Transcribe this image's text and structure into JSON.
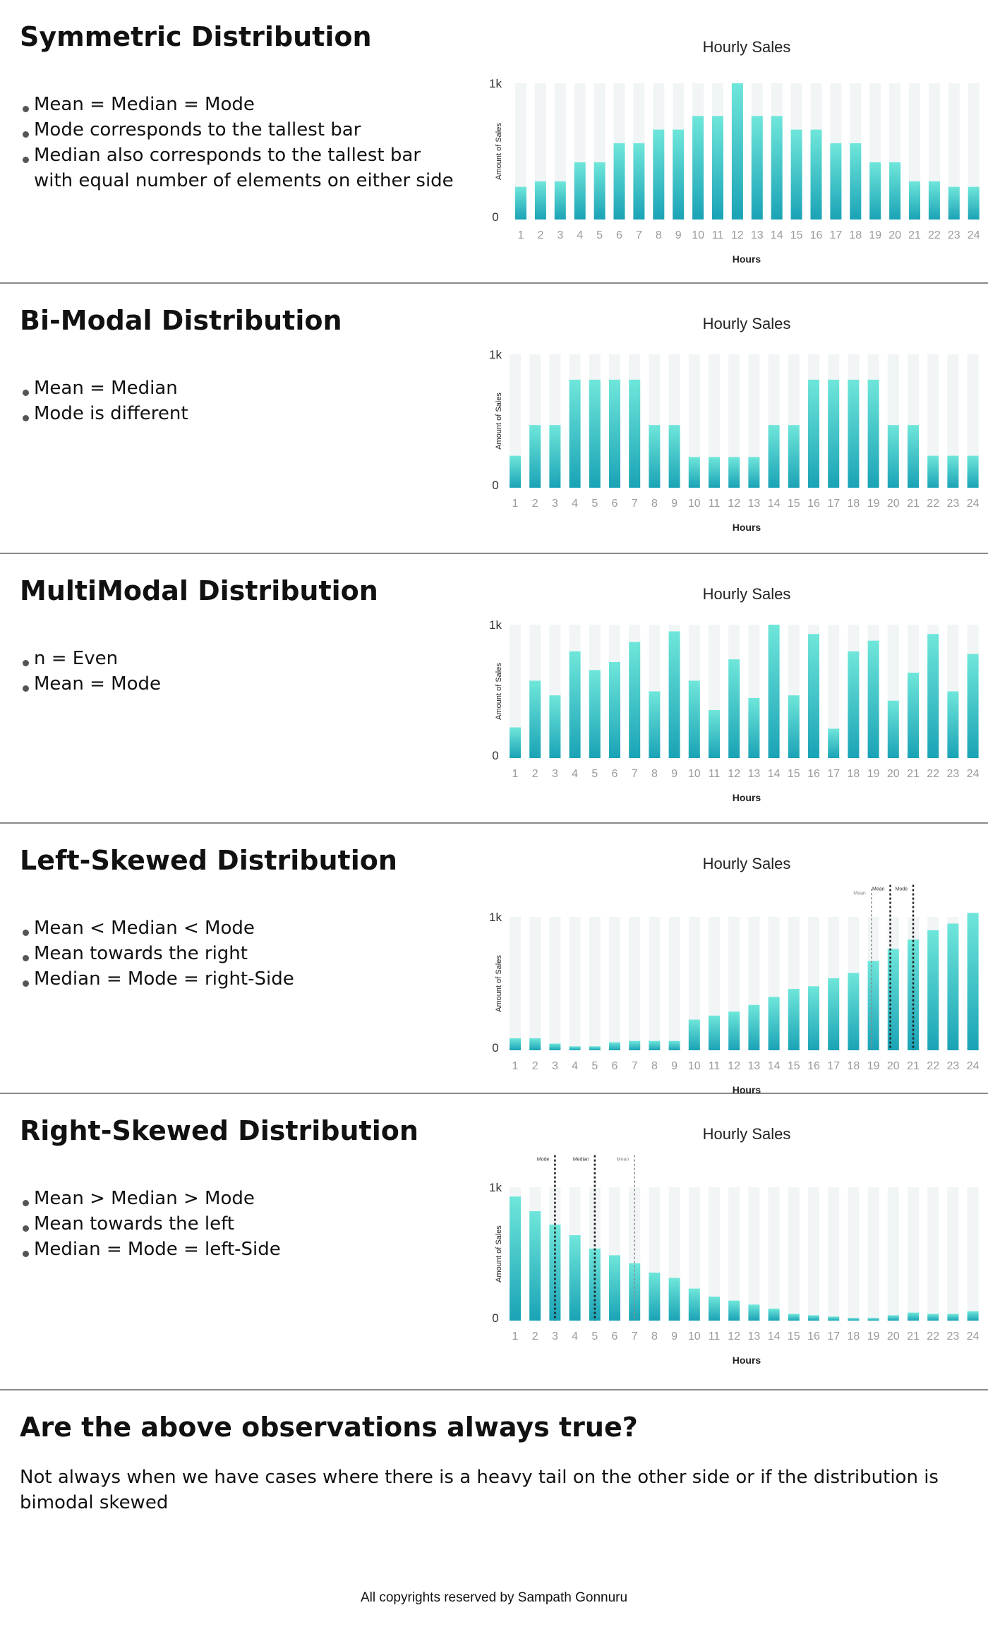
{
  "sections": [
    {
      "title": "Symmetric Distribution",
      "bullets": [
        "Mean = Median = Mode",
        "Mode corresponds to the tallest bar",
        "Median also corresponds to the tallest bar with equal number of elements on either side"
      ]
    },
    {
      "title": "Bi-Modal Distribution",
      "bullets": [
        "Mean = Median",
        "Mode is different"
      ]
    },
    {
      "title": "MultiModal Distribution",
      "bullets": [
        "n = Even",
        "Mean = Mode"
      ]
    },
    {
      "title": "Left-Skewed Distribution",
      "bullets": [
        "Mean < Median < Mode",
        "Mean towards the right",
        "Median = Mode = right-Side"
      ]
    },
    {
      "title": "Right-Skewed Distribution",
      "bullets": [
        "Mean > Median > Mode",
        "Mean towards the left",
        "Median = Mode = left-Side"
      ]
    }
  ],
  "final": {
    "title": "Are the above observations always true?",
    "text": "Not always when we have cases where there is a heavy tail on the other side or if the distribution is bimodal skewed",
    "copyright": "All copyrights reserved by Sampath Gonnuru"
  },
  "colors": {
    "bar_top": "#6fe6da",
    "bar_bottom": "#1aa3b6",
    "bar_track": "#f1f5f6",
    "axis_text": "#9a9a9a",
    "marker_line": "#222222"
  },
  "chart_data": [
    {
      "type": "bar",
      "title": "Hourly Sales",
      "xlabel": "Hours",
      "ylabel": "Amount of Sales",
      "categories": [
        "1",
        "2",
        "3",
        "4",
        "5",
        "6",
        "7",
        "8",
        "9",
        "10",
        "11",
        "12",
        "13",
        "14",
        "15",
        "16",
        "17",
        "18",
        "19",
        "20",
        "21",
        "22",
        "23",
        "24"
      ],
      "values": [
        240,
        280,
        280,
        420,
        420,
        560,
        560,
        660,
        660,
        760,
        760,
        1000,
        760,
        760,
        660,
        660,
        560,
        560,
        420,
        420,
        280,
        280,
        240,
        240
      ],
      "ylim": [
        0,
        1000
      ],
      "yticks": [
        "0",
        "1k"
      ],
      "markers": []
    },
    {
      "type": "bar",
      "title": "Hourly Sales",
      "xlabel": "Hours",
      "ylabel": "Amount of Sales",
      "categories": [
        "1",
        "2",
        "3",
        "4",
        "5",
        "6",
        "7",
        "8",
        "9",
        "10",
        "11",
        "12",
        "13",
        "14",
        "15",
        "16",
        "17",
        "18",
        "19",
        "20",
        "21",
        "22",
        "23",
        "24"
      ],
      "values": [
        240,
        470,
        470,
        810,
        810,
        810,
        810,
        470,
        470,
        230,
        230,
        230,
        230,
        470,
        470,
        810,
        810,
        810,
        810,
        470,
        470,
        240,
        240,
        240
      ],
      "ylim": [
        0,
        1000
      ],
      "yticks": [
        "0",
        "1k"
      ],
      "markers": []
    },
    {
      "type": "bar",
      "title": "Hourly Sales",
      "xlabel": "Hours",
      "ylabel": "Amount of Sales",
      "categories": [
        "1",
        "2",
        "3",
        "4",
        "5",
        "6",
        "7",
        "8",
        "9",
        "10",
        "11",
        "12",
        "13",
        "14",
        "15",
        "16",
        "17",
        "18",
        "19",
        "20",
        "21",
        "22",
        "23",
        "24"
      ],
      "values": [
        230,
        580,
        470,
        800,
        660,
        720,
        870,
        500,
        950,
        580,
        360,
        740,
        450,
        1000,
        470,
        930,
        220,
        800,
        880,
        430,
        640,
        930,
        500,
        780
      ],
      "ylim": [
        0,
        1000
      ],
      "yticks": [
        "0",
        "1k"
      ],
      "markers": []
    },
    {
      "type": "bar",
      "title": "Hourly Sales",
      "xlabel": "Hours",
      "ylabel": "Amount of Sales",
      "categories": [
        "1",
        "2",
        "3",
        "4",
        "5",
        "6",
        "7",
        "8",
        "9",
        "10",
        "11",
        "12",
        "13",
        "14",
        "15",
        "16",
        "17",
        "18",
        "19",
        "20",
        "21",
        "22",
        "23",
        "24"
      ],
      "values": [
        90,
        90,
        50,
        30,
        30,
        60,
        70,
        70,
        70,
        230,
        260,
        290,
        340,
        400,
        460,
        480,
        540,
        580,
        670,
        760,
        830,
        900,
        950,
        1030
      ],
      "ylim": [
        0,
        1000
      ],
      "yticks": [
        "0",
        "1k"
      ],
      "markers": [
        {
          "label": "Mean",
          "at": 18.9,
          "ymax": 1210,
          "style": "faint"
        },
        {
          "label": "Mean",
          "at": 19.85,
          "ymax": 1240,
          "style": "solid"
        },
        {
          "label": "Mode",
          "at": 21.0,
          "ymax": 1240,
          "style": "solid"
        }
      ]
    },
    {
      "type": "bar",
      "title": "Hourly Sales",
      "xlabel": "Hours",
      "ylabel": "Amount of Sales",
      "categories": [
        "1",
        "2",
        "3",
        "4",
        "5",
        "6",
        "7",
        "8",
        "9",
        "10",
        "11",
        "12",
        "13",
        "14",
        "15",
        "16",
        "17",
        "18",
        "19",
        "20",
        "21",
        "22",
        "23",
        "24"
      ],
      "values": [
        930,
        820,
        720,
        640,
        540,
        490,
        430,
        360,
        320,
        240,
        180,
        150,
        120,
        90,
        50,
        40,
        30,
        20,
        20,
        40,
        60,
        50,
        50,
        70
      ],
      "ylim": [
        0,
        1000
      ],
      "yticks": [
        "0",
        "1k"
      ],
      "markers": [
        {
          "label": "Mode",
          "at": 3.0,
          "ymax": 1240,
          "style": "solid"
        },
        {
          "label": "Median",
          "at": 5.0,
          "ymax": 1240,
          "style": "solid"
        },
        {
          "label": "Mean",
          "at": 7.0,
          "ymax": 1240,
          "style": "faint"
        }
      ]
    }
  ]
}
